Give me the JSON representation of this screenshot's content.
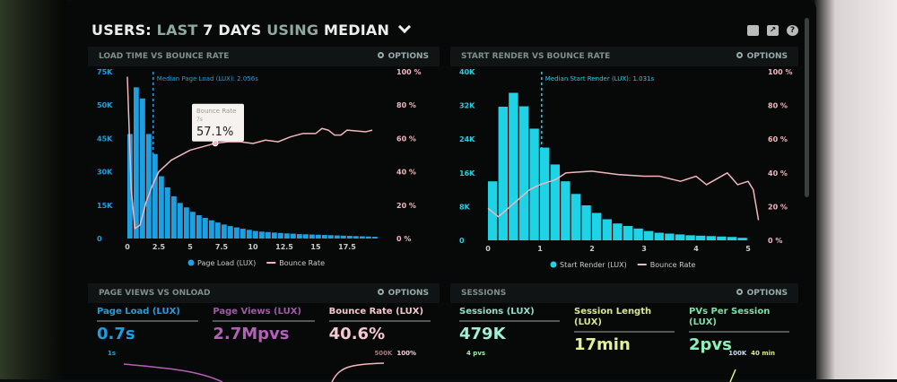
{
  "header": {
    "title_parts": [
      "USERS:",
      "LAST",
      "7 DAYS",
      "USING",
      "MEDIAN"
    ],
    "icons": [
      "monitor-icon",
      "share-icon",
      "help-icon"
    ],
    "help_glyph": "?",
    "share_glyph": "↗"
  },
  "colors": {
    "blue": "#1e9fe0",
    "cyan": "#1ed3e6",
    "pink": "#f2b7be",
    "purple": "#b45fb8",
    "green": "#7ee0a8",
    "yellow": "#d9e88a"
  },
  "panels": {
    "load": {
      "title": "LOAD TIME VS BOUNCE RATE",
      "options": "OPTIONS",
      "median_label": "Median Page Load (LUX): 2.056s",
      "tooltip": {
        "title": "Bounce Rate",
        "sub": "7s",
        "value": "57.1%"
      }
    },
    "render": {
      "title": "START RENDER VS BOUNCE RATE",
      "options": "OPTIONS",
      "median_label": "Median Start Render (LUX): 1.031s"
    },
    "pageviews": {
      "title": "PAGE VIEWS VS ONLOAD",
      "options": "OPTIONS",
      "metrics": [
        {
          "label": "Page Load (LUX)",
          "value": "0.7s"
        },
        {
          "label": "Page Views (LUX)",
          "value": "2.7Mpvs"
        },
        {
          "label": "Bounce Rate (LUX)",
          "value": "40.6%"
        }
      ],
      "axis_left": "1s",
      "axis_right_1": "500K",
      "axis_right_2": "100%"
    },
    "sessions": {
      "title": "SESSIONS",
      "options": "OPTIONS",
      "metrics": [
        {
          "label": "Sessions (LUX)",
          "value": "479K"
        },
        {
          "label": "Session Length (LUX)",
          "value": "17min"
        },
        {
          "label": "PVs Per Session (LUX)",
          "value": "2pvs"
        }
      ],
      "axis_left": "4 pvs",
      "axis_right_1": "100K",
      "axis_right_2": "40 min"
    }
  },
  "chart_data": [
    {
      "type": "bar",
      "title": "LOAD TIME VS BOUNCE RATE",
      "bar_width": 0.5,
      "x": [
        0,
        0.5,
        1,
        1.5,
        2,
        2.5,
        3,
        3.5,
        4,
        4.5,
        5,
        5.5,
        6,
        6.5,
        7,
        7.5,
        8,
        8.5,
        9,
        9.5,
        10,
        10.5,
        11,
        11.5,
        12,
        12.5,
        13,
        13.5,
        14,
        14.5,
        15,
        15.5,
        16,
        16.5,
        17,
        17.5,
        18,
        18.5,
        19,
        19.5
      ],
      "series": [
        {
          "name": "Page Load (LUX)",
          "axis": "left",
          "values": [
            47000,
            68000,
            63000,
            47000,
            38000,
            28000,
            23000,
            19000,
            16000,
            14000,
            12000,
            10500,
            9300,
            8200,
            7200,
            6300,
            5600,
            5000,
            4400,
            3900,
            3400,
            3100,
            2900,
            2700,
            2500,
            2300,
            2200,
            2000,
            1900,
            1800,
            1700,
            1600,
            1500,
            1400,
            1300,
            1200,
            1100,
            1000,
            900,
            800
          ]
        },
        {
          "name": "Bounce Rate",
          "axis": "right",
          "type": "line",
          "points": [
            [
              0,
              97
            ],
            [
              0.3,
              30
            ],
            [
              0.6,
              6
            ],
            [
              1,
              8
            ],
            [
              1.5,
              22
            ],
            [
              2,
              32
            ],
            [
              2.5,
              40
            ],
            [
              3.5,
              47
            ],
            [
              5,
              53
            ],
            [
              7,
              57.1
            ],
            [
              8,
              58
            ],
            [
              9,
              58
            ],
            [
              10,
              57
            ],
            [
              11,
              59
            ],
            [
              12,
              58
            ],
            [
              13,
              61
            ],
            [
              14,
              63
            ],
            [
              15,
              63
            ],
            [
              15.5,
              66
            ],
            [
              16,
              65
            ],
            [
              16.5,
              62
            ],
            [
              17,
              62
            ],
            [
              17.5,
              65
            ],
            [
              19,
              64
            ],
            [
              19.5,
              65
            ]
          ]
        }
      ],
      "yleft": {
        "ticks": [
          "0",
          "15K",
          "30K",
          "45K",
          "50K",
          "75K"
        ],
        "lim": [
          0,
          75000
        ]
      },
      "yright": {
        "ticks": [
          "0 %",
          "20 %",
          "40 %",
          "60 %",
          "80 %",
          "100 %"
        ],
        "lim": [
          0,
          100
        ]
      },
      "xticks": [
        "0",
        "2.5",
        "5",
        "7.5",
        "10",
        "12.5",
        "15",
        "17.5"
      ],
      "xlim": [
        0,
        20
      ],
      "median": 2.056,
      "legend": "bottom"
    },
    {
      "type": "bar",
      "title": "START RENDER VS BOUNCE RATE",
      "bar_width": 0.2,
      "x": [
        0,
        0.2,
        0.4,
        0.6,
        0.8,
        1,
        1.2,
        1.4,
        1.6,
        1.8,
        2,
        2.2,
        2.4,
        2.6,
        2.8,
        3,
        3.2,
        3.4,
        3.6,
        3.8,
        4,
        4.2,
        4.4,
        4.6,
        4.8
      ],
      "series": [
        {
          "name": "Start Render (LUX)",
          "axis": "left",
          "values": [
            14000,
            31700,
            35000,
            31800,
            26500,
            22000,
            18000,
            14000,
            11000,
            8300,
            6500,
            5000,
            4000,
            3400,
            2800,
            2200,
            1800,
            1600,
            1400,
            1200,
            1100,
            1000,
            900,
            800,
            600
          ]
        },
        {
          "name": "Bounce Rate",
          "axis": "right",
          "type": "line",
          "points": [
            [
              0,
              19
            ],
            [
              0.2,
              14
            ],
            [
              0.5,
              22
            ],
            [
              0.8,
              30
            ],
            [
              1,
              33
            ],
            [
              1.3,
              36
            ],
            [
              1.5,
              40
            ],
            [
              2,
              41
            ],
            [
              2.5,
              39
            ],
            [
              3,
              38
            ],
            [
              3.3,
              38
            ],
            [
              3.7,
              35
            ],
            [
              4,
              38
            ],
            [
              4.2,
              33
            ],
            [
              4.6,
              40
            ],
            [
              4.8,
              33
            ],
            [
              5,
              35
            ],
            [
              5.1,
              30
            ],
            [
              5.2,
              12
            ]
          ]
        }
      ],
      "yleft": {
        "ticks": [
          "0",
          "8K",
          "16K",
          "24K",
          "32K",
          "40K"
        ],
        "lim": [
          0,
          40000
        ]
      },
      "yright": {
        "ticks": [
          "0 %",
          "20 %",
          "40 %",
          "60 %",
          "80 %",
          "100 %"
        ],
        "lim": [
          0,
          100
        ]
      },
      "xticks": [
        "0",
        "1",
        "2",
        "3",
        "4",
        "5"
      ],
      "xlim": [
        0,
        5
      ],
      "median": 1.031,
      "legend": "bottom"
    }
  ]
}
